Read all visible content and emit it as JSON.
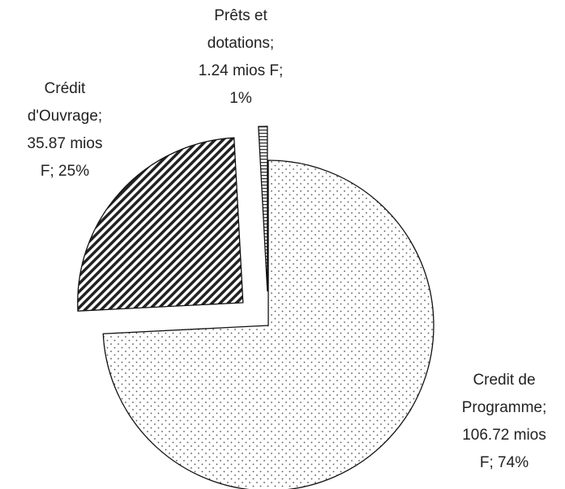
{
  "chart_data": {
    "type": "pie",
    "values": [
      106.72,
      35.87,
      1.24
    ],
    "value_labels": [
      "Credit de\nProgramme;\n106.72 mios\nF; 74%",
      "Crédit\nd'Ouvrage;\n35.87 mios\nF; 25%",
      "Prêts et\ndotations;\n1.24 mios F;\n1%"
    ]
  }
}
